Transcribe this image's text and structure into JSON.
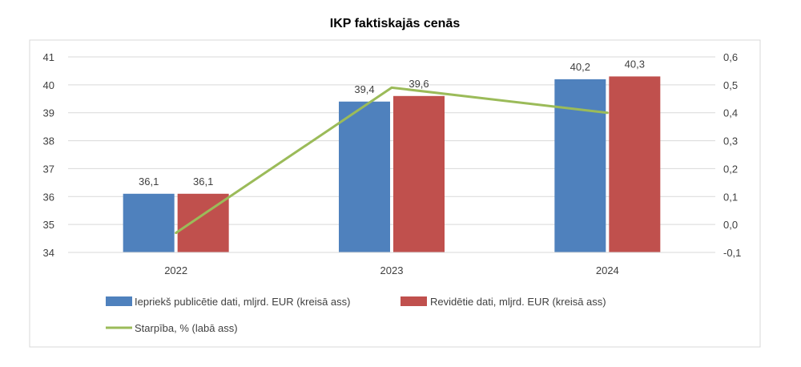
{
  "chart_data": {
    "type": "bar",
    "title": "IKP faktiskajās cenās",
    "categories": [
      "2022",
      "2023",
      "2024"
    ],
    "series": [
      {
        "name": "Iepriekš publicētie dati, mljrd. EUR (kreisā ass)",
        "type": "bar",
        "axis": "left",
        "color": "#4F81BD",
        "values": [
          36.1,
          39.4,
          40.2
        ],
        "labels": [
          "36,1",
          "39,4",
          "40,2"
        ]
      },
      {
        "name": "Revidētie dati, mljrd. EUR (kreisā ass)",
        "type": "bar",
        "axis": "left",
        "color": "#C0504D",
        "values": [
          36.1,
          39.6,
          40.3
        ],
        "labels": [
          "36,1",
          "39,6",
          "40,3"
        ]
      },
      {
        "name": "Starpība, % (labā ass)",
        "type": "line",
        "axis": "right",
        "color": "#9BBB59",
        "values": [
          -0.03,
          0.49,
          0.4
        ]
      }
    ],
    "y_left": {
      "min": 34,
      "max": 41,
      "ticks": [
        34,
        35,
        36,
        37,
        38,
        39,
        40,
        41
      ],
      "tick_labels": [
        "34",
        "35",
        "36",
        "37",
        "38",
        "39",
        "40",
        "41"
      ]
    },
    "y_right": {
      "min": -0.1,
      "max": 0.6,
      "ticks": [
        -0.1,
        0.0,
        0.1,
        0.2,
        0.3,
        0.4,
        0.5,
        0.6
      ],
      "tick_labels": [
        "-0,1",
        "0,0",
        "0,1",
        "0,2",
        "0,3",
        "0,4",
        "0,5",
        "0,6"
      ]
    },
    "grid": true,
    "legend_position": "bottom"
  }
}
